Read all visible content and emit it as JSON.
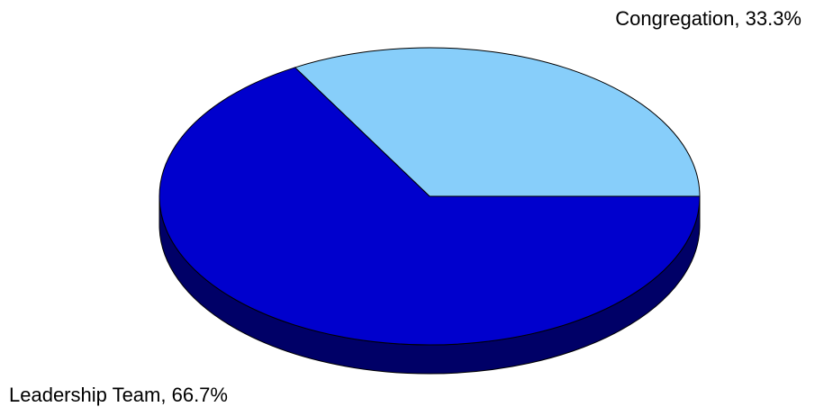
{
  "chart_data": {
    "type": "pie3d",
    "categories": [
      "Congregation",
      "Leadership Team"
    ],
    "values": [
      33.3,
      66.7
    ],
    "value_labels": [
      "Congregation, 33.3%",
      "Leadership Team, 66.7%"
    ],
    "colors": [
      "#87cefa",
      "#0000cd"
    ]
  }
}
